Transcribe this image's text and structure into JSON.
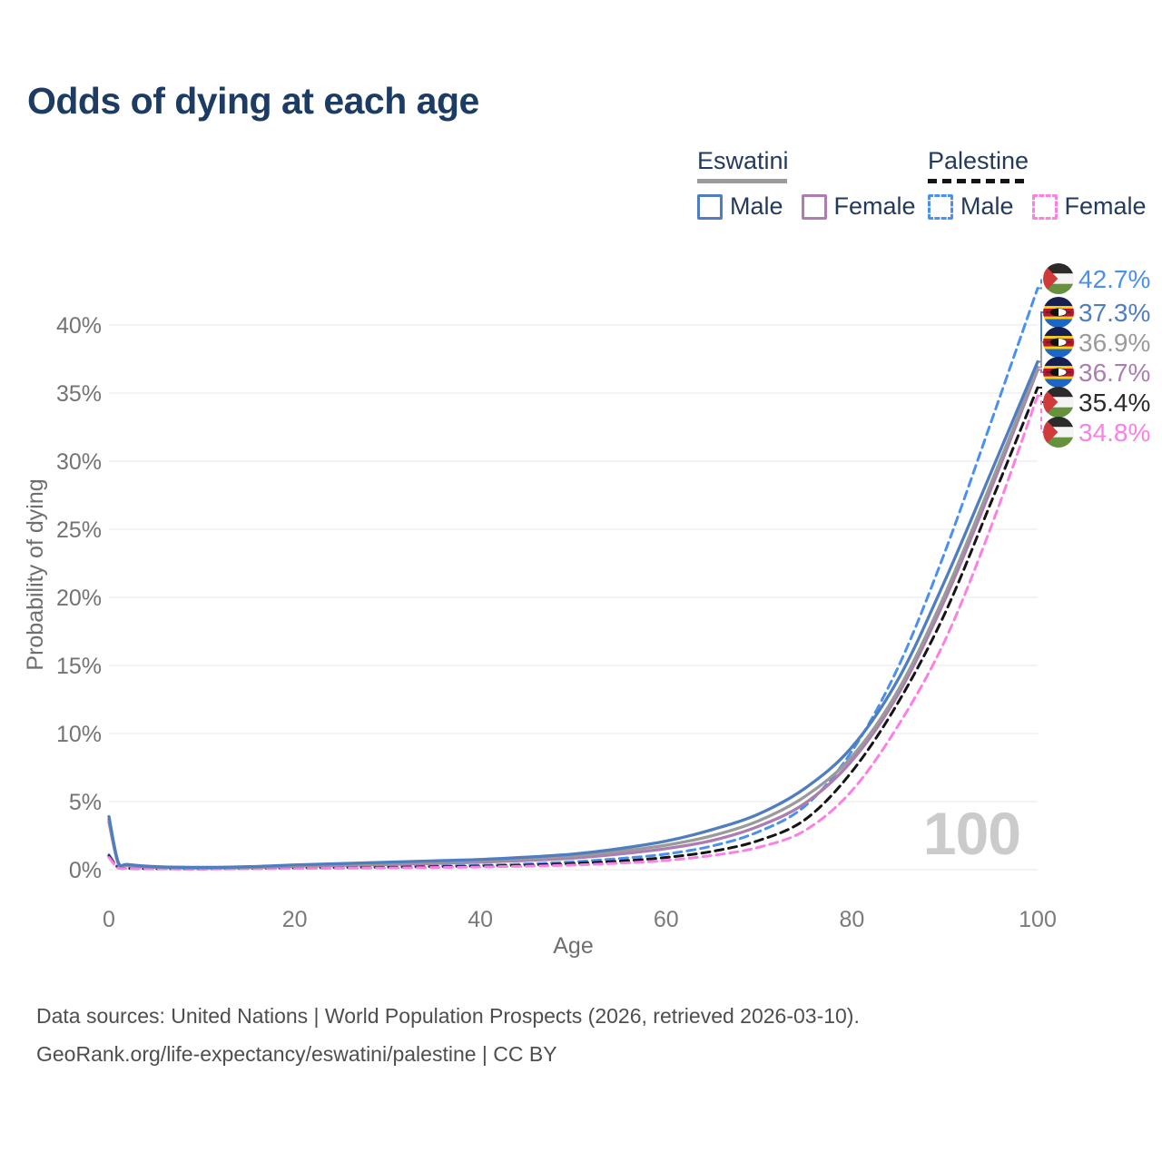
{
  "title": "Odds of dying at each age",
  "legend": {
    "groups": [
      {
        "name": "Eswatini",
        "line_style": "solid",
        "underline_color": "#9b9b9b",
        "items": [
          {
            "label": "Male",
            "color": "#4e7dc0"
          },
          {
            "label": "Female",
            "color": "#ad7cb0"
          }
        ]
      },
      {
        "name": "Palestine",
        "line_style": "dashed",
        "underline_color": "#141414",
        "items": [
          {
            "label": "Male",
            "color": "#4a90ee"
          },
          {
            "label": "Female",
            "color": "#fc7fe4"
          }
        ]
      }
    ]
  },
  "chart_data": {
    "type": "line",
    "title": "Odds of dying at each age",
    "xlabel": "Age",
    "ylabel": "Probability of dying",
    "xlim": [
      0,
      100
    ],
    "ylim": [
      0,
      43
    ],
    "grid": "horizontal",
    "watermark": "100",
    "x_ticks": [
      {
        "value": 0,
        "label": "0"
      },
      {
        "value": 20,
        "label": "20"
      },
      {
        "value": 40,
        "label": "40"
      },
      {
        "value": 60,
        "label": "60"
      },
      {
        "value": 80,
        "label": "80"
      },
      {
        "value": 100,
        "label": "100"
      }
    ],
    "y_ticks": [
      {
        "value": 0,
        "label": "0%"
      },
      {
        "value": 5,
        "label": "5%"
      },
      {
        "value": 10,
        "label": "10%"
      },
      {
        "value": 15,
        "label": "15%"
      },
      {
        "value": 20,
        "label": "20%"
      },
      {
        "value": 25,
        "label": "25%"
      },
      {
        "value": 30,
        "label": "30%"
      },
      {
        "value": 35,
        "label": "35%"
      },
      {
        "value": 40,
        "label": "40%"
      }
    ],
    "x": [
      0,
      1,
      2,
      5,
      10,
      15,
      20,
      25,
      30,
      35,
      40,
      45,
      50,
      55,
      60,
      65,
      70,
      75,
      80,
      85,
      90,
      95,
      100
    ],
    "series": [
      {
        "id": "pal_male",
        "name": "Palestine Male",
        "color": "#4a90ee",
        "dashed": true,
        "values": [
          1.1,
          0.16,
          0.11,
          0.08,
          0.07,
          0.11,
          0.16,
          0.19,
          0.22,
          0.26,
          0.32,
          0.42,
          0.58,
          0.82,
          1.15,
          1.75,
          2.8,
          4.7,
          8.7,
          14.9,
          23.3,
          32.9,
          42.7
        ]
      },
      {
        "id": "pal_total",
        "name": "Palestine",
        "color": "#141414",
        "dashed": true,
        "values": [
          1.0,
          0.14,
          0.1,
          0.07,
          0.06,
          0.09,
          0.12,
          0.15,
          0.17,
          0.21,
          0.26,
          0.33,
          0.45,
          0.63,
          0.9,
          1.35,
          2.15,
          3.7,
          7.2,
          12.3,
          18.8,
          27.0,
          35.4
        ]
      },
      {
        "id": "pal_female",
        "name": "Palestine Female",
        "color": "#fc7fe4",
        "dashed": true,
        "values": [
          0.9,
          0.12,
          0.09,
          0.06,
          0.05,
          0.07,
          0.09,
          0.11,
          0.13,
          0.16,
          0.2,
          0.26,
          0.34,
          0.48,
          0.68,
          1.05,
          1.65,
          2.9,
          5.8,
          10.6,
          16.8,
          25.2,
          34.8
        ]
      },
      {
        "id": "esw_female",
        "name": "Eswatini Female",
        "color": "#ad7cb0",
        "dashed": false,
        "values": [
          3.5,
          0.46,
          0.3,
          0.18,
          0.13,
          0.16,
          0.25,
          0.32,
          0.38,
          0.46,
          0.55,
          0.68,
          0.85,
          1.15,
          1.55,
          2.15,
          3.2,
          4.9,
          8.0,
          12.9,
          19.8,
          28.0,
          36.7
        ]
      },
      {
        "id": "esw_total",
        "name": "Eswatini",
        "color": "#9a9a9a",
        "dashed": false,
        "values": [
          3.7,
          0.5,
          0.34,
          0.2,
          0.15,
          0.19,
          0.3,
          0.38,
          0.45,
          0.55,
          0.65,
          0.8,
          1.0,
          1.35,
          1.8,
          2.5,
          3.6,
          5.4,
          8.3,
          13.2,
          20.2,
          28.4,
          36.9
        ]
      },
      {
        "id": "esw_male",
        "name": "Eswatini Male",
        "color": "#4e7dc0",
        "dashed": false,
        "values": [
          3.9,
          0.55,
          0.38,
          0.22,
          0.17,
          0.22,
          0.35,
          0.45,
          0.55,
          0.65,
          0.75,
          0.92,
          1.15,
          1.55,
          2.1,
          2.95,
          4.1,
          6.0,
          9.0,
          14.0,
          21.2,
          29.2,
          37.3
        ]
      }
    ],
    "end_labels": [
      {
        "label": "42.7%",
        "series": "pal_male",
        "flag": "palestine",
        "color": "#4a90ee"
      },
      {
        "label": "37.3%",
        "series": "esw_male",
        "flag": "eswatini",
        "color": "#4e7dc0"
      },
      {
        "label": "36.9%",
        "series": "esw_total",
        "flag": "eswatini",
        "color": "#9a9a9a"
      },
      {
        "label": "36.7%",
        "series": "esw_female",
        "flag": "eswatini",
        "color": "#ad7cb0"
      },
      {
        "label": "35.4%",
        "series": "pal_total",
        "flag": "palestine",
        "color": "#2b2b2b"
      },
      {
        "label": "34.8%",
        "series": "pal_female",
        "flag": "palestine",
        "color": "#fc7fe4"
      }
    ]
  },
  "footer": {
    "line1": "Data sources: United Nations | World Population Prospects (2026, retrieved 2026-03-10).",
    "line2": "GeoRank.org/life-expectancy/eswatini/palestine | CC BY"
  }
}
